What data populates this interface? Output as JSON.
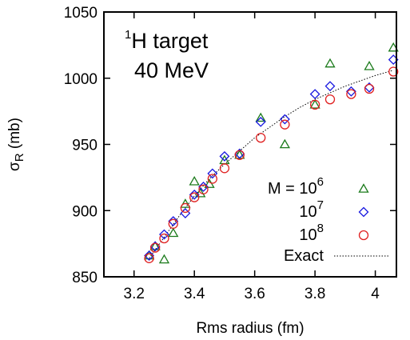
{
  "chart_data": {
    "type": "scatter",
    "xlabel": "Rms radius (fm)",
    "ylabel_main": "σ",
    "ylabel_sub": "R",
    "ylabel_unit": " (mb)",
    "xlim": [
      3.1,
      4.07
    ],
    "ylim": [
      850,
      1050
    ],
    "xticks": [
      3.2,
      3.4,
      3.6,
      3.8,
      4.0
    ],
    "xtick_labels": [
      "3.2",
      "3.4",
      "3.6",
      "3.8",
      "4"
    ],
    "yticks": [
      850,
      900,
      950,
      1000,
      1050
    ],
    "ytick_labels": [
      "850",
      "900",
      "950",
      "1000",
      "1050"
    ],
    "grid": false,
    "legend_position": "bottom-right",
    "annotation": {
      "line1_sup": "1",
      "line1_main": "H target",
      "line2": "40 MeV"
    },
    "series": [
      {
        "name_main": "M = 10",
        "name_exp": "6",
        "marker": "triangle",
        "color": "#1a7a1a",
        "x": [
          3.25,
          3.27,
          3.3,
          3.33,
          3.37,
          3.4,
          3.42,
          3.45,
          3.5,
          3.55,
          3.62,
          3.7,
          3.8,
          3.85,
          3.98,
          4.06
        ],
        "y": [
          866,
          873,
          863,
          883,
          905,
          922,
          913,
          920,
          938,
          942,
          970,
          950,
          980,
          1011,
          1009,
          1023
        ]
      },
      {
        "name_main": "10",
        "name_exp": "7",
        "marker": "diamond",
        "color": "#1818e0",
        "x": [
          3.25,
          3.27,
          3.3,
          3.33,
          3.37,
          3.4,
          3.43,
          3.46,
          3.5,
          3.55,
          3.62,
          3.7,
          3.8,
          3.85,
          3.92,
          3.98,
          4.06
        ],
        "y": [
          866,
          873,
          882,
          892,
          898,
          912,
          918,
          928,
          941,
          943,
          967,
          969,
          988,
          994,
          990,
          993,
          1014
        ]
      },
      {
        "name_main": "10",
        "name_exp": "8",
        "marker": "circle",
        "color": "#e02020",
        "x": [
          3.25,
          3.27,
          3.3,
          3.33,
          3.37,
          3.4,
          3.43,
          3.46,
          3.5,
          3.55,
          3.62,
          3.7,
          3.8,
          3.85,
          3.92,
          3.98,
          4.06
        ],
        "y": [
          864,
          872,
          879,
          890,
          902,
          910,
          916,
          924,
          932,
          942,
          955,
          965,
          980,
          984,
          988,
          992,
          1005
        ]
      }
    ],
    "exact": {
      "name": "Exact",
      "style": "dotted",
      "color": "#000000",
      "x": [
        3.25,
        3.3,
        3.35,
        3.4,
        3.45,
        3.5,
        3.55,
        3.6,
        3.65,
        3.7,
        3.75,
        3.8,
        3.85,
        3.9,
        3.95,
        4.0,
        4.06
      ],
      "y": [
        864,
        880,
        896,
        911,
        924,
        935,
        945,
        955,
        963,
        971,
        978,
        984,
        989,
        994,
        998,
        1002,
        1006
      ]
    }
  }
}
